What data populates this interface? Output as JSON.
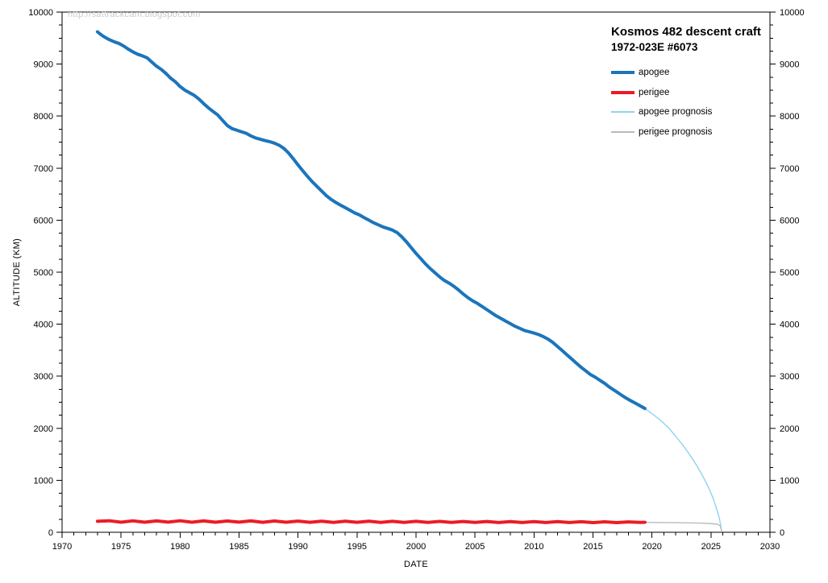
{
  "page": {
    "background": "#ffffff"
  },
  "watermark": "http://sattrackcam.blogspot.com",
  "chart_data": {
    "type": "line",
    "title": "Kosmos 482 descent craft",
    "subtitle": "1972-023E  #6073",
    "xlabel": "DATE",
    "ylabel": "ALTITUDE (KM)",
    "xlim": [
      1970,
      2030
    ],
    "ylim": [
      0,
      10000
    ],
    "x_major_ticks": [
      1970,
      1975,
      1980,
      1985,
      1990,
      1995,
      2000,
      2005,
      2010,
      2015,
      2020,
      2025,
      2030
    ],
    "x_minor_step": 1,
    "y_major_ticks": [
      0,
      1000,
      2000,
      3000,
      4000,
      5000,
      6000,
      7000,
      8000,
      9000,
      10000
    ],
    "y_minor_step": 250,
    "grid": false,
    "legend_position": "top-right",
    "axis_color": "#000000",
    "series": [
      {
        "name": "apogee",
        "color": "#1b75bc",
        "stroke_width": 4,
        "points": [
          [
            1973.0,
            9620
          ],
          [
            1973.3,
            9565
          ],
          [
            1973.6,
            9520
          ],
          [
            1974.0,
            9470
          ],
          [
            1974.4,
            9430
          ],
          [
            1974.8,
            9400
          ],
          [
            1975.2,
            9350
          ],
          [
            1975.6,
            9290
          ],
          [
            1976.0,
            9235
          ],
          [
            1976.4,
            9190
          ],
          [
            1976.8,
            9160
          ],
          [
            1977.2,
            9120
          ],
          [
            1977.6,
            9040
          ],
          [
            1978.0,
            8960
          ],
          [
            1978.4,
            8900
          ],
          [
            1978.8,
            8820
          ],
          [
            1979.2,
            8730
          ],
          [
            1979.6,
            8660
          ],
          [
            1980.0,
            8570
          ],
          [
            1980.4,
            8500
          ],
          [
            1980.8,
            8450
          ],
          [
            1981.2,
            8400
          ],
          [
            1981.6,
            8330
          ],
          [
            1982.0,
            8240
          ],
          [
            1982.4,
            8160
          ],
          [
            1982.8,
            8090
          ],
          [
            1983.2,
            8020
          ],
          [
            1983.6,
            7920
          ],
          [
            1984.0,
            7820
          ],
          [
            1984.4,
            7760
          ],
          [
            1984.8,
            7730
          ],
          [
            1985.2,
            7700
          ],
          [
            1985.6,
            7670
          ],
          [
            1986.0,
            7620
          ],
          [
            1986.4,
            7580
          ],
          [
            1986.8,
            7555
          ],
          [
            1987.2,
            7530
          ],
          [
            1987.6,
            7510
          ],
          [
            1988.0,
            7480
          ],
          [
            1988.4,
            7440
          ],
          [
            1988.8,
            7380
          ],
          [
            1989.2,
            7290
          ],
          [
            1989.6,
            7180
          ],
          [
            1990.0,
            7060
          ],
          [
            1990.4,
            6950
          ],
          [
            1990.8,
            6840
          ],
          [
            1991.2,
            6740
          ],
          [
            1991.6,
            6650
          ],
          [
            1992.0,
            6560
          ],
          [
            1992.4,
            6470
          ],
          [
            1992.8,
            6400
          ],
          [
            1993.2,
            6340
          ],
          [
            1993.6,
            6290
          ],
          [
            1994.0,
            6240
          ],
          [
            1994.4,
            6190
          ],
          [
            1994.8,
            6140
          ],
          [
            1995.2,
            6100
          ],
          [
            1995.6,
            6050
          ],
          [
            1996.0,
            6000
          ],
          [
            1996.4,
            5950
          ],
          [
            1996.8,
            5910
          ],
          [
            1997.2,
            5870
          ],
          [
            1997.6,
            5840
          ],
          [
            1998.0,
            5810
          ],
          [
            1998.4,
            5760
          ],
          [
            1998.8,
            5680
          ],
          [
            1999.2,
            5580
          ],
          [
            1999.6,
            5470
          ],
          [
            2000.0,
            5360
          ],
          [
            2000.4,
            5260
          ],
          [
            2000.8,
            5160
          ],
          [
            2001.2,
            5070
          ],
          [
            2001.6,
            4990
          ],
          [
            2002.0,
            4910
          ],
          [
            2002.4,
            4840
          ],
          [
            2002.8,
            4790
          ],
          [
            2003.2,
            4730
          ],
          [
            2003.6,
            4660
          ],
          [
            2004.0,
            4580
          ],
          [
            2004.4,
            4510
          ],
          [
            2004.8,
            4450
          ],
          [
            2005.2,
            4400
          ],
          [
            2005.6,
            4340
          ],
          [
            2006.0,
            4280
          ],
          [
            2006.4,
            4220
          ],
          [
            2006.8,
            4160
          ],
          [
            2007.2,
            4110
          ],
          [
            2007.6,
            4060
          ],
          [
            2008.0,
            4010
          ],
          [
            2008.4,
            3960
          ],
          [
            2008.8,
            3920
          ],
          [
            2009.2,
            3880
          ],
          [
            2009.6,
            3855
          ],
          [
            2010.0,
            3830
          ],
          [
            2010.4,
            3800
          ],
          [
            2010.8,
            3760
          ],
          [
            2011.2,
            3710
          ],
          [
            2011.6,
            3650
          ],
          [
            2012.0,
            3570
          ],
          [
            2012.4,
            3490
          ],
          [
            2012.8,
            3410
          ],
          [
            2013.2,
            3330
          ],
          [
            2013.6,
            3250
          ],
          [
            2014.0,
            3170
          ],
          [
            2014.4,
            3100
          ],
          [
            2014.8,
            3030
          ],
          [
            2015.2,
            2980
          ],
          [
            2015.6,
            2920
          ],
          [
            2016.0,
            2860
          ],
          [
            2016.4,
            2790
          ],
          [
            2017.0,
            2700
          ],
          [
            2017.4,
            2640
          ],
          [
            2017.8,
            2580
          ],
          [
            2018.2,
            2530
          ],
          [
            2018.6,
            2480
          ],
          [
            2019.0,
            2430
          ],
          [
            2019.4,
            2380
          ]
        ]
      },
      {
        "name": "perigee",
        "color": "#ec1c24",
        "stroke_width": 4,
        "points": [
          [
            1973.0,
            210
          ],
          [
            1974,
            222
          ],
          [
            1975,
            194
          ],
          [
            1976,
            220
          ],
          [
            1977,
            193
          ],
          [
            1978,
            219
          ],
          [
            1979,
            195
          ],
          [
            1980,
            221
          ],
          [
            1981,
            194
          ],
          [
            1982,
            218
          ],
          [
            1983,
            193
          ],
          [
            1984,
            217
          ],
          [
            1985,
            195
          ],
          [
            1986,
            218
          ],
          [
            1987,
            192
          ],
          [
            1988,
            216
          ],
          [
            1989,
            193
          ],
          [
            1990,
            215
          ],
          [
            1991,
            192
          ],
          [
            1992,
            214
          ],
          [
            1993,
            191
          ],
          [
            1994,
            213
          ],
          [
            1995,
            192
          ],
          [
            1996,
            212
          ],
          [
            1997,
            190
          ],
          [
            1998,
            211
          ],
          [
            1999,
            191
          ],
          [
            2000,
            210
          ],
          [
            2001,
            190
          ],
          [
            2002,
            209
          ],
          [
            2003,
            189
          ],
          [
            2004,
            208
          ],
          [
            2005,
            189
          ],
          [
            2006,
            207
          ],
          [
            2007,
            188
          ],
          [
            2008,
            206
          ],
          [
            2009,
            188
          ],
          [
            2010,
            205
          ],
          [
            2011,
            187
          ],
          [
            2012,
            204
          ],
          [
            2013,
            187
          ],
          [
            2014,
            203
          ],
          [
            2015,
            186
          ],
          [
            2016,
            202
          ],
          [
            2017,
            186
          ],
          [
            2018,
            200
          ],
          [
            2019,
            190
          ],
          [
            2019.4,
            192
          ]
        ]
      },
      {
        "name": "apogee prognosis",
        "color": "#8ed3ee",
        "stroke_width": 1.4,
        "points": [
          [
            2019.4,
            2380
          ],
          [
            2020.0,
            2280
          ],
          [
            2020.7,
            2160
          ],
          [
            2021.4,
            2010
          ],
          [
            2022.0,
            1850
          ],
          [
            2022.6,
            1680
          ],
          [
            2023.2,
            1490
          ],
          [
            2023.8,
            1280
          ],
          [
            2024.3,
            1080
          ],
          [
            2024.8,
            860
          ],
          [
            2025.2,
            640
          ],
          [
            2025.5,
            440
          ],
          [
            2025.7,
            280
          ],
          [
            2025.82,
            140
          ],
          [
            2025.9,
            30
          ]
        ]
      },
      {
        "name": "perigee prognosis",
        "color": "#b7babd",
        "stroke_width": 1.4,
        "points": [
          [
            2019.4,
            192
          ],
          [
            2020.5,
            188
          ],
          [
            2022.0,
            184
          ],
          [
            2023.5,
            179
          ],
          [
            2024.5,
            173
          ],
          [
            2025.2,
            163
          ],
          [
            2025.6,
            150
          ],
          [
            2025.8,
            120
          ],
          [
            2025.9,
            30
          ]
        ]
      }
    ]
  }
}
